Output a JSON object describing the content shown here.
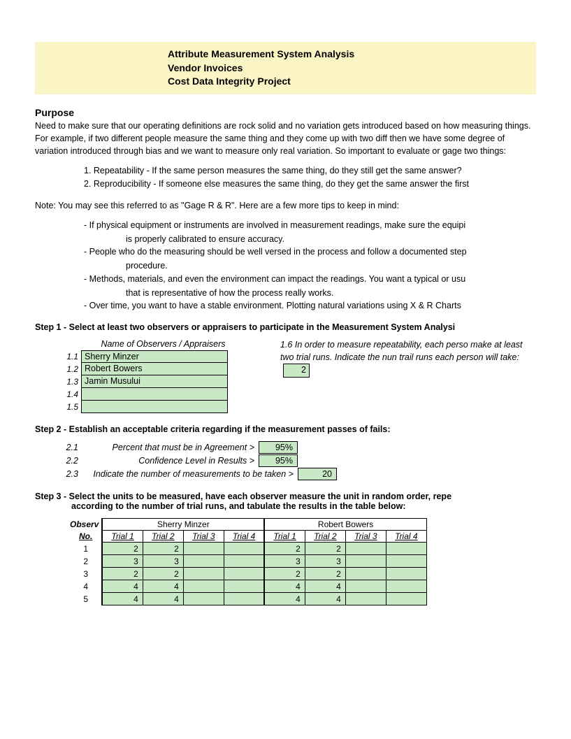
{
  "header": {
    "line1": "Attribute Measurement System Analysis",
    "line2": "Vendor Invoices",
    "line3": "Cost Data Integrity Project"
  },
  "purpose": {
    "title": "Purpose",
    "para": "Need to make sure that our operating definitions are rock solid and no variation gets introduced based on how measuring things. For example, if two different people measure the same thing and they come up with two diff then we have some degree of variation introduced through bias and we want to measure only real variation. So important to evaluate or gage two things:",
    "item1": "1. Repeatability - If the same person measures the same thing, do they still get the same answer?",
    "item2": "2. Reproducibility - If someone else measures the same thing, do they get the same answer the first",
    "note": "Note: You may see this referred to as \"Gage R & R\". Here are a few more tips to keep in mind:",
    "tip1a": "- If physical equipment or instruments are involved in measurement readings, make sure the equipi",
    "tip1b": "is properly calibrated to ensure accuracy.",
    "tip2a": "- People who do the measuring should be well versed in the process and follow a documented step",
    "tip2b": "procedure.",
    "tip3a": "- Methods, materials, and even the environment can impact the readings. You want a typical or usu",
    "tip3b": "that is representative of how the process really works.",
    "tip4": "- Over time, you want to have a stable environment. Plotting natural variations using X & R Charts"
  },
  "step1": {
    "title": "Step 1 - Select at least two observers or appraisers to participate in the Measurement System Analysi",
    "obs_header": "Name of Observers / Appraisers",
    "rows": [
      {
        "num": "1.1",
        "name": "Sherry Minzer"
      },
      {
        "num": "1.2",
        "name": "Robert Bowers"
      },
      {
        "num": "1.3",
        "name": "Jamin Musului"
      },
      {
        "num": "1.4",
        "name": ""
      },
      {
        "num": "1.5",
        "name": ""
      }
    ],
    "right_num": "1.6",
    "right_text": "In order to measure repeatability, each perso make at least two trial runs. Indicate the nun trail runs each person will take:",
    "trial_count": "2"
  },
  "step2": {
    "title": "Step 2 - Establish an acceptable criteria regarding if the measurement passes of fails:",
    "rows": [
      {
        "num": "2.1",
        "label": "Percent that must be in Agreement >",
        "val": "95%",
        "w": "w1"
      },
      {
        "num": "2.2",
        "label": "Confidence Level in Results >",
        "val": "95%",
        "w": "w1"
      },
      {
        "num": "2.3",
        "label": "Indicate the number of measurements to be taken >",
        "val": "20",
        "w": "w2"
      }
    ]
  },
  "step3": {
    "title_l1": "Step 3 - Select the units to be measured, have each observer measure the unit in random order, repe",
    "title_l2": "according to the number of trial runs, and tabulate the results in the table below:",
    "obs_label": "Observ",
    "no_label": "No.",
    "observers": [
      "Sherry Minzer",
      "Robert Bowers"
    ],
    "trials": [
      "Trial 1",
      "Trial 2",
      "Trial 3",
      "Trial 4"
    ],
    "rows": [
      {
        "n": "1",
        "a": [
          "2",
          "2",
          "",
          ""
        ],
        "b": [
          "2",
          "2",
          "",
          ""
        ]
      },
      {
        "n": "2",
        "a": [
          "3",
          "3",
          "",
          ""
        ],
        "b": [
          "3",
          "3",
          "",
          ""
        ]
      },
      {
        "n": "3",
        "a": [
          "2",
          "2",
          "",
          ""
        ],
        "b": [
          "2",
          "2",
          "",
          ""
        ]
      },
      {
        "n": "4",
        "a": [
          "4",
          "4",
          "",
          ""
        ],
        "b": [
          "4",
          "4",
          "",
          ""
        ]
      },
      {
        "n": "5",
        "a": [
          "4",
          "4",
          "",
          ""
        ],
        "b": [
          "4",
          "4",
          "",
          ""
        ]
      }
    ]
  },
  "colors": {
    "header_bg": "#fbf5c6",
    "input_bg": "#c8e8c6"
  }
}
